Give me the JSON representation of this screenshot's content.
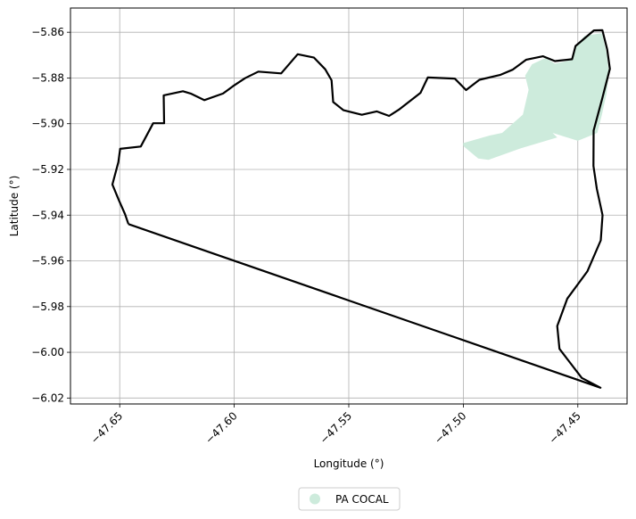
{
  "chart_data": {
    "type": "map",
    "xlabel": "Longitude (°)",
    "ylabel": "Latitude (°)",
    "xlim": [
      -47.6715,
      -47.4285
    ],
    "ylim": [
      -6.0226,
      -5.8494
    ],
    "x_ticks": [
      -47.65,
      -47.6,
      -47.55,
      -47.5,
      -47.45
    ],
    "x_tick_labels": [
      "−47.65",
      "−47.60",
      "−47.55",
      "−47.50",
      "−47.45"
    ],
    "y_ticks": [
      -5.86,
      -5.88,
      -5.9,
      -5.92,
      -5.94,
      -5.96,
      -5.98,
      -6.0,
      -6.02
    ],
    "y_tick_labels": [
      "−5.86",
      "−5.88",
      "−5.90",
      "−5.92",
      "−5.94",
      "−5.96",
      "−5.98",
      "−6.00",
      "−6.02"
    ],
    "grid": true,
    "legend_position": "bottom-center",
    "boundary": {
      "color": "#000000",
      "points": [
        [
          -47.6462,
          -5.9439
        ],
        [
          -47.6477,
          -5.9395
        ],
        [
          -47.6503,
          -5.9336
        ],
        [
          -47.6532,
          -5.9266
        ],
        [
          -47.6506,
          -5.9168
        ],
        [
          -47.6498,
          -5.911
        ],
        [
          -47.6408,
          -5.91
        ],
        [
          -47.6354,
          -5.8998
        ],
        [
          -47.6306,
          -5.8998
        ],
        [
          -47.6308,
          -5.8876
        ],
        [
          -47.6224,
          -5.8858
        ],
        [
          -47.619,
          -5.8868
        ],
        [
          -47.6131,
          -5.8897
        ],
        [
          -47.6049,
          -5.8868
        ],
        [
          -47.6006,
          -5.8836
        ],
        [
          -47.5953,
          -5.8801
        ],
        [
          -47.5895,
          -5.8772
        ],
        [
          -47.5795,
          -5.878
        ],
        [
          -47.5723,
          -5.8696
        ],
        [
          -47.5652,
          -5.8711
        ],
        [
          -47.5603,
          -5.8762
        ],
        [
          -47.5575,
          -5.881
        ],
        [
          -47.5568,
          -5.8905
        ],
        [
          -47.5523,
          -5.8941
        ],
        [
          -47.5443,
          -5.8961
        ],
        [
          -47.5378,
          -5.8946
        ],
        [
          -47.5324,
          -5.8966
        ],
        [
          -47.5282,
          -5.8939
        ],
        [
          -47.5187,
          -5.8865
        ],
        [
          -47.5155,
          -5.8798
        ],
        [
          -47.5037,
          -5.8803
        ],
        [
          -47.4988,
          -5.8853
        ],
        [
          -47.493,
          -5.8808
        ],
        [
          -47.484,
          -5.8787
        ],
        [
          -47.4785,
          -5.8764
        ],
        [
          -47.4725,
          -5.872
        ],
        [
          -47.4652,
          -5.8705
        ],
        [
          -47.46,
          -5.8726
        ],
        [
          -47.4525,
          -5.8718
        ],
        [
          -47.451,
          -5.866
        ],
        [
          -47.443,
          -5.8592
        ],
        [
          -47.4393,
          -5.8591
        ],
        [
          -47.4372,
          -5.8675
        ],
        [
          -47.436,
          -5.876
        ],
        [
          -47.4394,
          -5.8892
        ],
        [
          -47.4431,
          -5.903
        ],
        [
          -47.4432,
          -5.9185
        ],
        [
          -47.4417,
          -5.9285
        ],
        [
          -47.4392,
          -5.94
        ],
        [
          -47.44,
          -5.951
        ],
        [
          -47.4458,
          -5.9645
        ],
        [
          -47.4546,
          -5.9765
        ],
        [
          -47.459,
          -5.9885
        ],
        [
          -47.458,
          -5.9985
        ],
        [
          -47.4483,
          -6.0112
        ],
        [
          -47.4401,
          -6.0155
        ],
        [
          -47.6462,
          -5.9439
        ]
      ]
    },
    "series": [
      {
        "name": "PA COCAL",
        "color": "#cdebdc",
        "points": [
          [
            -47.4715,
            -5.8852
          ],
          [
            -47.474,
            -5.896
          ],
          [
            -47.483,
            -5.904
          ],
          [
            -47.4885,
            -5.9052
          ],
          [
            -47.5001,
            -5.9085
          ],
          [
            -47.5,
            -5.9098
          ],
          [
            -47.4935,
            -5.9152
          ],
          [
            -47.489,
            -5.9158
          ],
          [
            -47.475,
            -5.9108
          ],
          [
            -47.459,
            -5.906
          ],
          [
            -47.461,
            -5.904
          ],
          [
            -47.45,
            -5.9075
          ],
          [
            -47.4415,
            -5.904
          ],
          [
            -47.4395,
            -5.896
          ],
          [
            -47.4375,
            -5.887
          ],
          [
            -47.4364,
            -5.878
          ],
          [
            -47.4375,
            -5.869
          ],
          [
            -47.4395,
            -5.8604
          ],
          [
            -47.447,
            -5.8615
          ],
          [
            -47.4512,
            -5.8665
          ],
          [
            -47.452,
            -5.872
          ],
          [
            -47.46,
            -5.8738
          ],
          [
            -47.464,
            -5.8712
          ],
          [
            -47.47,
            -5.874
          ],
          [
            -47.473,
            -5.879
          ],
          [
            -47.4715,
            -5.8852
          ]
        ]
      }
    ]
  }
}
